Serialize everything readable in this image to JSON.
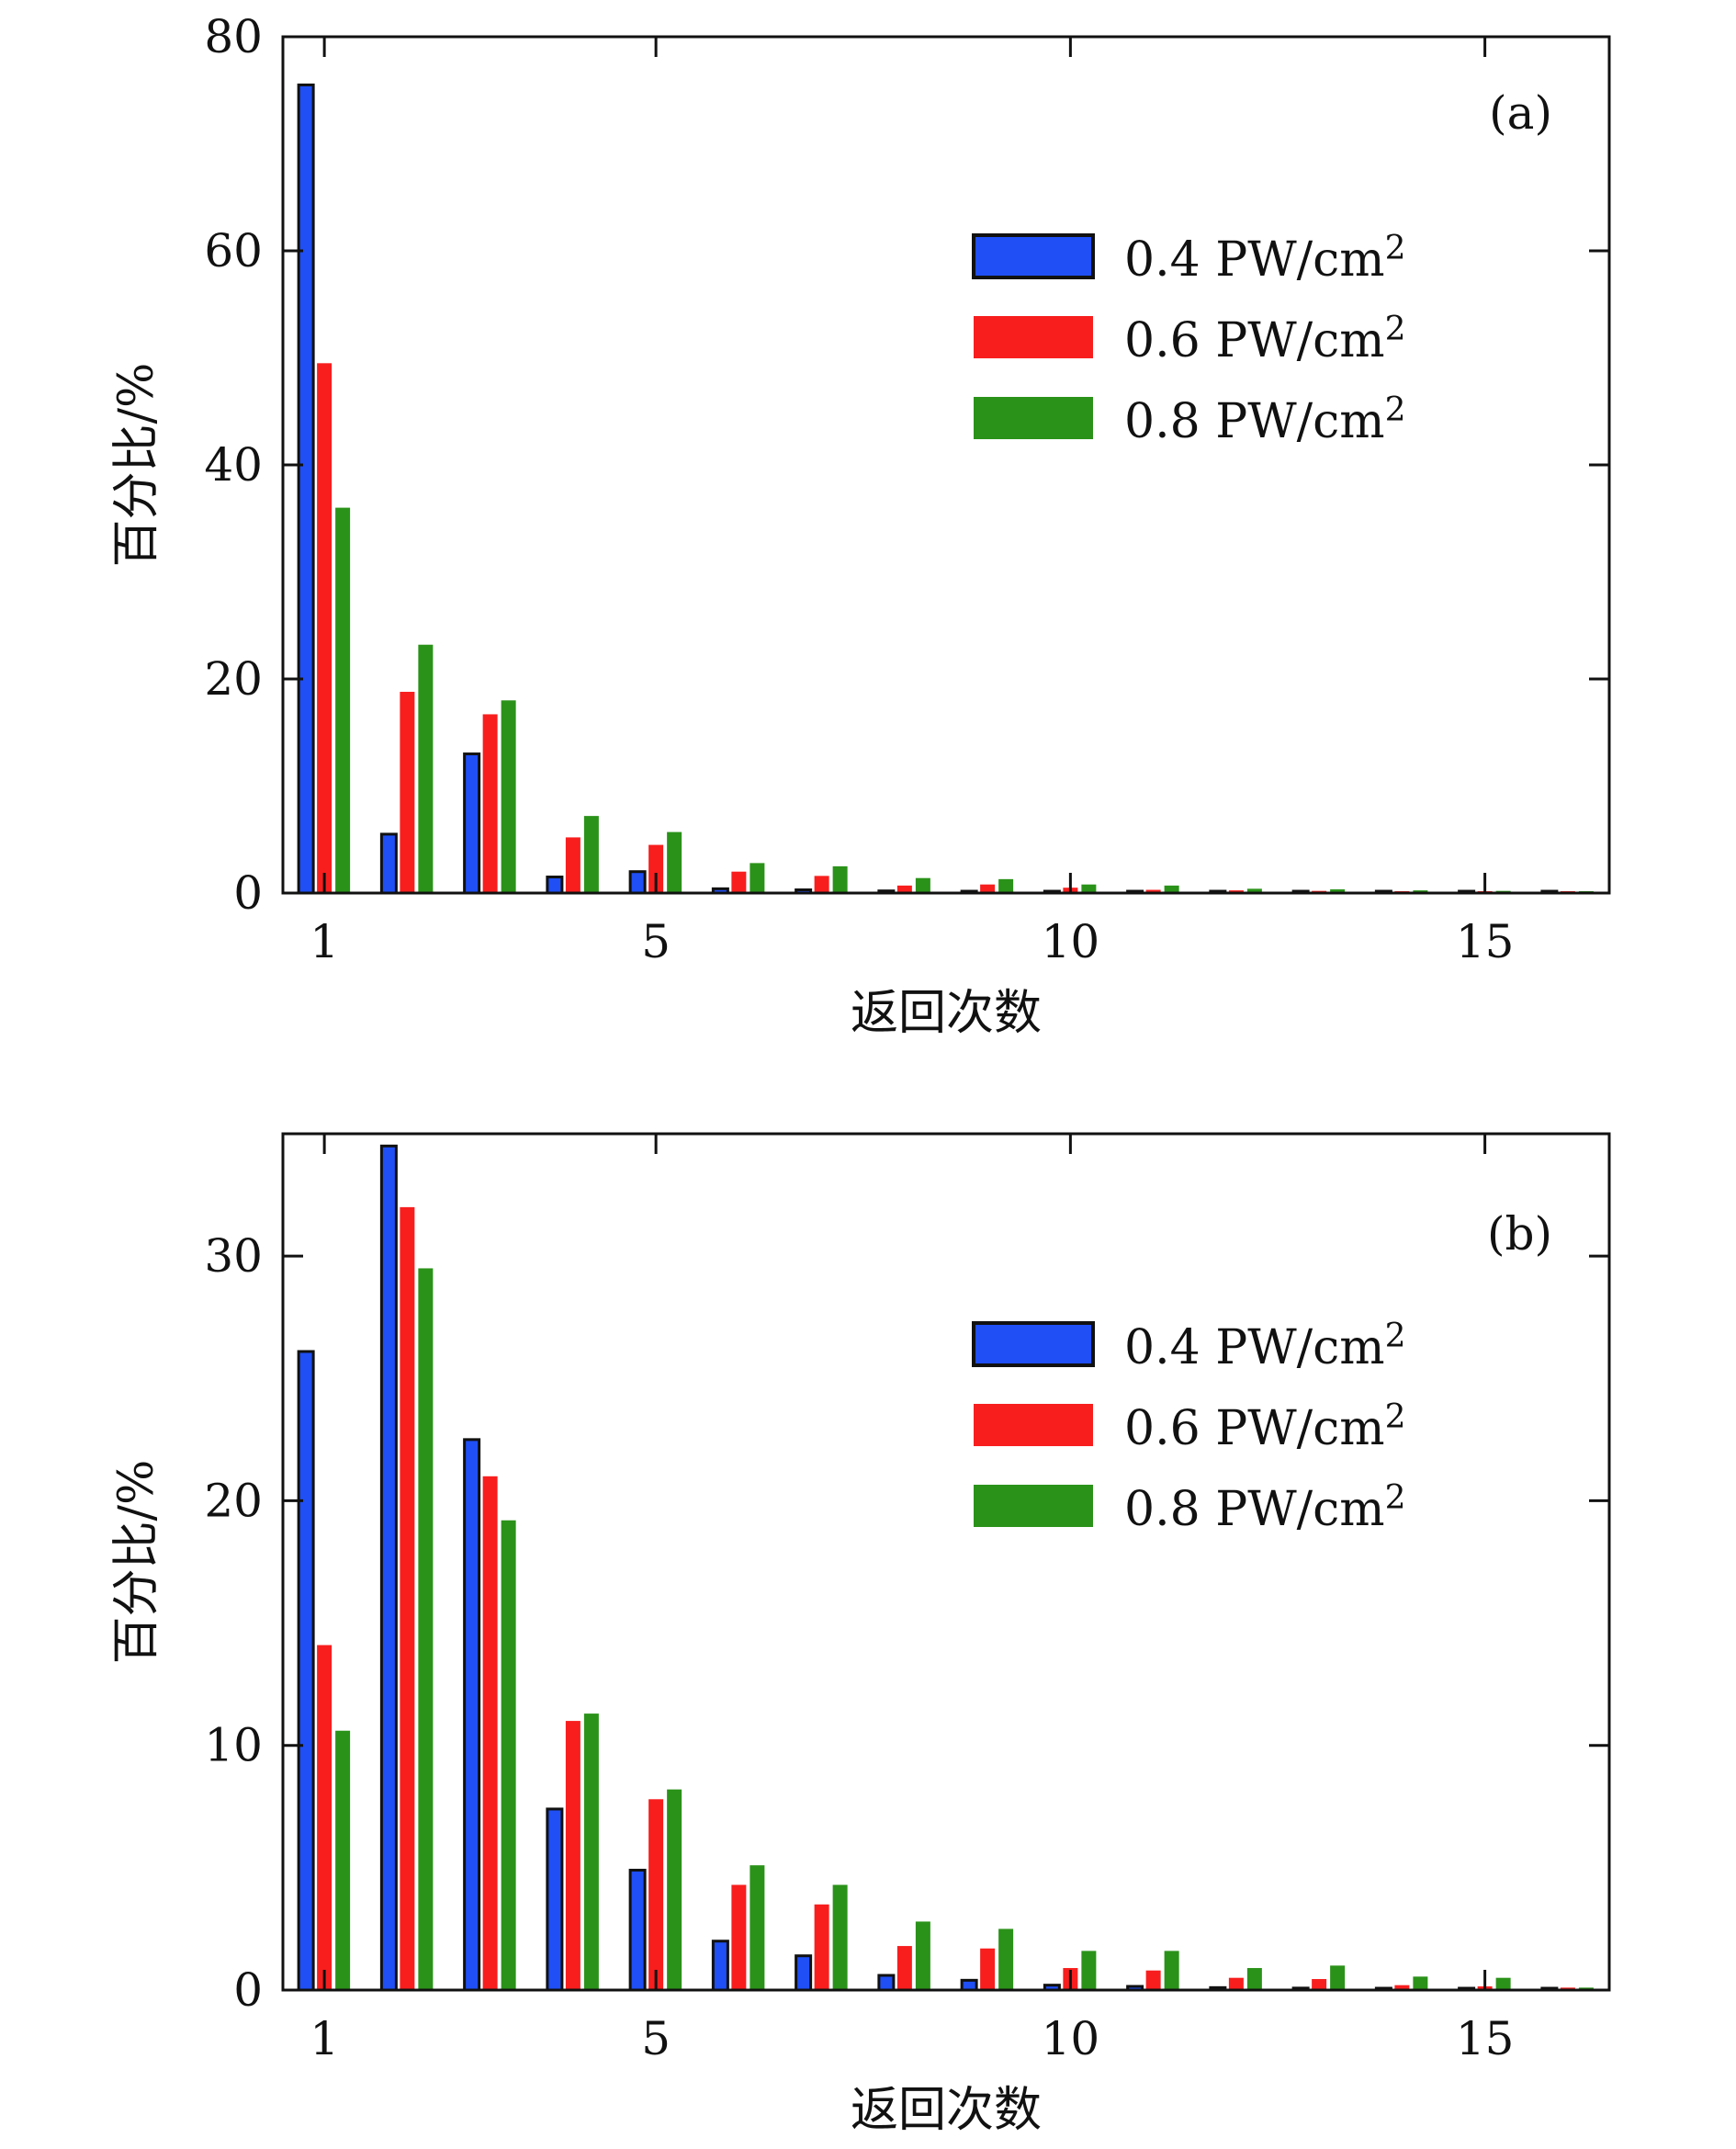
{
  "chart_data": [
    {
      "type": "bar",
      "panel_label": "(a)",
      "xlabel": "返回次数",
      "ylabel": "百分比/%",
      "xlim": [
        0.5,
        16.5
      ],
      "ylim": [
        0,
        80
      ],
      "x_ticks": [
        1,
        5,
        10,
        15
      ],
      "y_ticks": [
        0,
        20,
        40,
        60,
        80
      ],
      "grid": false,
      "legend_position": "right",
      "categories": [
        1,
        2,
        3,
        4,
        5,
        6,
        7,
        8,
        9,
        10,
        11,
        12,
        13,
        14,
        15,
        16
      ],
      "series": [
        {
          "name": "0.4 PW/cm²",
          "color": "#1f4ff5",
          "outlined": true,
          "values": [
            75.5,
            5.5,
            13.0,
            1.5,
            2.0,
            0.4,
            0.3,
            0.2,
            0.15,
            0.1,
            0.08,
            0.05,
            0.04,
            0.03,
            0.02,
            0.02
          ]
        },
        {
          "name": "0.6 PW/cm²",
          "color": "#f81e1e",
          "outlined": false,
          "values": [
            49.5,
            18.8,
            16.7,
            5.2,
            4.5,
            2.0,
            1.6,
            0.7,
            0.8,
            0.5,
            0.3,
            0.25,
            0.2,
            0.15,
            0.1,
            0.05
          ]
        },
        {
          "name": "0.8 PW/cm²",
          "color": "#2a9219",
          "outlined": false,
          "values": [
            36.0,
            23.2,
            18.0,
            7.2,
            5.7,
            2.8,
            2.5,
            1.4,
            1.3,
            0.8,
            0.7,
            0.4,
            0.35,
            0.25,
            0.2,
            0.1
          ]
        }
      ]
    },
    {
      "type": "bar",
      "panel_label": "(b)",
      "xlabel": "返回次数",
      "ylabel": "百分比/%",
      "xlim": [
        0.5,
        16.5
      ],
      "ylim": [
        0,
        35
      ],
      "x_ticks": [
        1,
        5,
        10,
        15
      ],
      "y_ticks": [
        0,
        10,
        20,
        30
      ],
      "grid": false,
      "legend_position": "right",
      "categories": [
        1,
        2,
        3,
        4,
        5,
        6,
        7,
        8,
        9,
        10,
        11,
        12,
        13,
        14,
        15,
        16
      ],
      "series": [
        {
          "name": "0.4 PW/cm²",
          "color": "#1f4ff5",
          "outlined": true,
          "values": [
            26.1,
            34.5,
            22.5,
            7.4,
            4.9,
            2.0,
            1.4,
            0.6,
            0.4,
            0.2,
            0.15,
            0.1,
            0.08,
            0.05,
            0.04,
            0.03
          ]
        },
        {
          "name": "0.6 PW/cm²",
          "color": "#f81e1e",
          "outlined": false,
          "values": [
            14.1,
            32.0,
            21.0,
            11.0,
            7.8,
            4.3,
            3.5,
            1.8,
            1.7,
            0.9,
            0.8,
            0.5,
            0.45,
            0.2,
            0.15,
            0.1
          ]
        },
        {
          "name": "0.8 PW/cm²",
          "color": "#2a9219",
          "outlined": false,
          "values": [
            10.6,
            29.5,
            19.2,
            11.3,
            8.2,
            5.1,
            4.3,
            2.8,
            2.5,
            1.6,
            1.6,
            0.9,
            1.0,
            0.55,
            0.5,
            0.1
          ]
        }
      ]
    }
  ]
}
